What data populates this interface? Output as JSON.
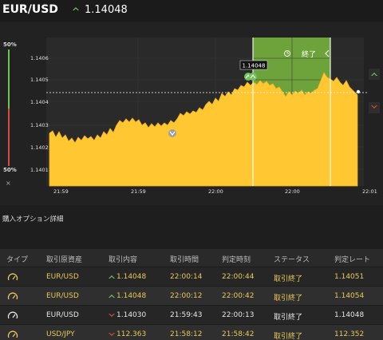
{
  "header": {
    "pair": "EUR/USD",
    "price": "1.14048",
    "direction_icon": "up-arrow-icon",
    "up_color": "#6fc25a"
  },
  "gauge": {
    "high_pct": "50%",
    "low_pct": "50%",
    "close_label": "×"
  },
  "chart": {
    "y_ticks": [
      "1.1406",
      "1.1405",
      "1.1404",
      "1.1403",
      "1.1402",
      "1.1401"
    ],
    "x_ticks": [
      "21:59",
      "21:59",
      "22:00",
      "22:00",
      "22:01"
    ],
    "marker_label": "1.14048",
    "end_label": "終了",
    "fill_color": "#ffc832",
    "zone_color": "#6da33a"
  },
  "options": {
    "title": "購入オプション詳細",
    "columns": [
      "タイプ",
      "取引原資産",
      "取引内容",
      "取引時間",
      "判定時刻",
      "ステータス",
      "判定レート"
    ],
    "rows": [
      {
        "asset": "EUR/USD",
        "direction": "up",
        "rate": "1.14048",
        "trade_time": "22:00:14",
        "judge_time": "22:00:44",
        "status": "取引終了",
        "judge_rate": "1.14051"
      },
      {
        "asset": "EUR/USD",
        "direction": "up",
        "rate": "1.14048",
        "trade_time": "22:00:12",
        "judge_time": "22:00:42",
        "status": "取引終了",
        "judge_rate": "1.14054"
      },
      {
        "asset": "EUR/USD",
        "direction": "down",
        "rate": "1.14030",
        "trade_time": "21:59:43",
        "judge_time": "22:00:13",
        "status": "取引終了",
        "judge_rate": "1.14048"
      },
      {
        "asset": "USD/JPY",
        "direction": "down",
        "rate": "112.363",
        "trade_time": "21:58:12",
        "judge_time": "21:58:42",
        "status": "取引終了",
        "judge_rate": "112.352"
      }
    ]
  }
}
